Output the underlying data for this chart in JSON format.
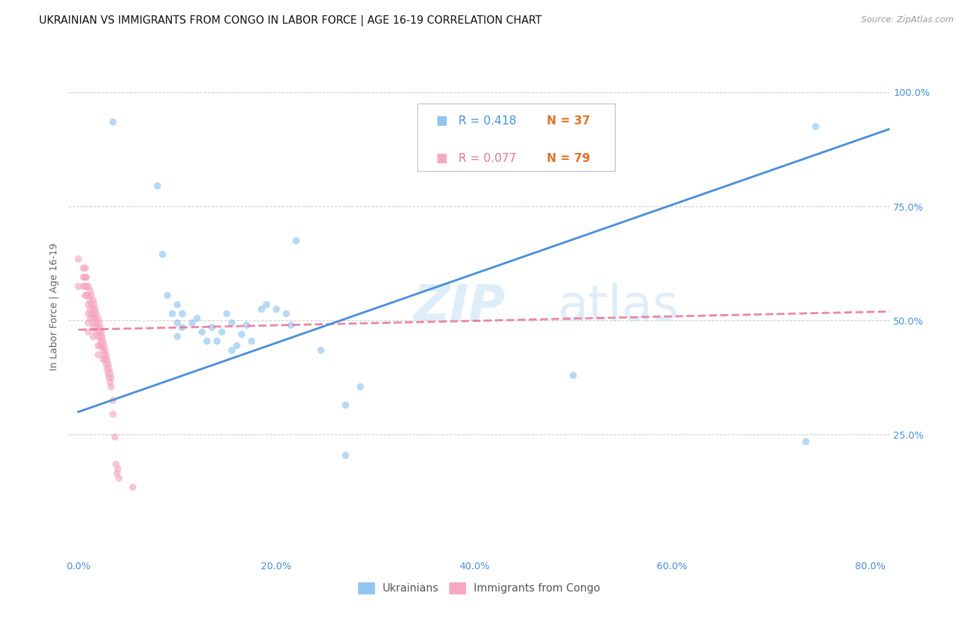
{
  "title": "UKRAINIAN VS IMMIGRANTS FROM CONGO IN LABOR FORCE | AGE 16-19 CORRELATION CHART",
  "source": "Source: ZipAtlas.com",
  "ylabel": "In Labor Force | Age 16-19",
  "x_tick_labels": [
    "0.0%",
    "20.0%",
    "40.0%",
    "60.0%",
    "80.0%"
  ],
  "x_tick_values": [
    0.0,
    0.2,
    0.4,
    0.6,
    0.8
  ],
  "y_tick_labels": [
    "25.0%",
    "50.0%",
    "75.0%",
    "100.0%"
  ],
  "y_tick_values": [
    0.25,
    0.5,
    0.75,
    1.0
  ],
  "xlim": [
    -0.01,
    0.82
  ],
  "ylim": [
    -0.02,
    1.08
  ],
  "blue_color": "#92c5f0",
  "pink_color": "#f5a8c0",
  "blue_line_color": "#4a90d9",
  "pink_line_color": "#e87595",
  "grid_color": "#cccccc",
  "watermark_zip": "ZIP",
  "watermark_atlas": "atlas",
  "legend_R_blue": "R = 0.418",
  "legend_N_blue": "N = 37",
  "legend_R_pink": "R = 0.077",
  "legend_N_pink": "N = 79",
  "legend_N_color": "#e07428",
  "ukrainians_label": "Ukrainians",
  "congo_label": "Immigrants from Congo",
  "blue_scatter_x": [
    0.035,
    0.08,
    0.085,
    0.09,
    0.095,
    0.1,
    0.105,
    0.1,
    0.1,
    0.105,
    0.115,
    0.12,
    0.125,
    0.13,
    0.135,
    0.14,
    0.145,
    0.15,
    0.155,
    0.155,
    0.16,
    0.165,
    0.17,
    0.175,
    0.185,
    0.19,
    0.2,
    0.21,
    0.215,
    0.245,
    0.27,
    0.27,
    0.285,
    0.5,
    0.735,
    0.745,
    0.22
  ],
  "blue_scatter_y": [
    0.935,
    0.795,
    0.645,
    0.555,
    0.515,
    0.535,
    0.515,
    0.495,
    0.465,
    0.485,
    0.495,
    0.505,
    0.475,
    0.455,
    0.485,
    0.455,
    0.475,
    0.515,
    0.495,
    0.435,
    0.445,
    0.47,
    0.49,
    0.455,
    0.525,
    0.535,
    0.525,
    0.515,
    0.49,
    0.435,
    0.315,
    0.205,
    0.355,
    0.38,
    0.235,
    0.925,
    0.675
  ],
  "pink_scatter_x": [
    0.0,
    0.0,
    0.005,
    0.005,
    0.005,
    0.007,
    0.007,
    0.007,
    0.007,
    0.008,
    0.008,
    0.008,
    0.01,
    0.01,
    0.01,
    0.01,
    0.01,
    0.01,
    0.012,
    0.012,
    0.012,
    0.012,
    0.013,
    0.013,
    0.013,
    0.015,
    0.015,
    0.015,
    0.015,
    0.015,
    0.016,
    0.016,
    0.016,
    0.017,
    0.017,
    0.018,
    0.018,
    0.018,
    0.02,
    0.02,
    0.02,
    0.02,
    0.02,
    0.021,
    0.021,
    0.022,
    0.022,
    0.022,
    0.023,
    0.023,
    0.024,
    0.024,
    0.025,
    0.025,
    0.025,
    0.026,
    0.026,
    0.027,
    0.027,
    0.028,
    0.028,
    0.029,
    0.029,
    0.03,
    0.03,
    0.031,
    0.031,
    0.032,
    0.032,
    0.033,
    0.033,
    0.035,
    0.035,
    0.037,
    0.038,
    0.039,
    0.04,
    0.041,
    0.055
  ],
  "pink_scatter_y": [
    0.635,
    0.575,
    0.615,
    0.595,
    0.575,
    0.615,
    0.595,
    0.575,
    0.555,
    0.595,
    0.575,
    0.555,
    0.575,
    0.555,
    0.535,
    0.515,
    0.495,
    0.475,
    0.565,
    0.545,
    0.525,
    0.505,
    0.555,
    0.535,
    0.515,
    0.545,
    0.525,
    0.505,
    0.485,
    0.465,
    0.535,
    0.515,
    0.495,
    0.525,
    0.505,
    0.515,
    0.495,
    0.475,
    0.505,
    0.485,
    0.465,
    0.445,
    0.425,
    0.495,
    0.475,
    0.485,
    0.465,
    0.445,
    0.475,
    0.455,
    0.465,
    0.445,
    0.455,
    0.435,
    0.415,
    0.445,
    0.425,
    0.435,
    0.415,
    0.425,
    0.405,
    0.415,
    0.395,
    0.405,
    0.385,
    0.395,
    0.375,
    0.385,
    0.365,
    0.375,
    0.355,
    0.325,
    0.295,
    0.245,
    0.185,
    0.165,
    0.175,
    0.155,
    0.135
  ],
  "blue_trendline_x": [
    0.0,
    0.82
  ],
  "blue_trendline_y": [
    0.3,
    0.92
  ],
  "pink_trendline_x": [
    0.0,
    0.82
  ],
  "pink_trendline_y": [
    0.48,
    0.52
  ],
  "title_fontsize": 11,
  "axis_label_fontsize": 10,
  "tick_fontsize": 10,
  "legend_fontsize": 12,
  "source_fontsize": 9,
  "scatter_size": 55,
  "scatter_alpha": 0.65,
  "trendline_linewidth": 2.2
}
